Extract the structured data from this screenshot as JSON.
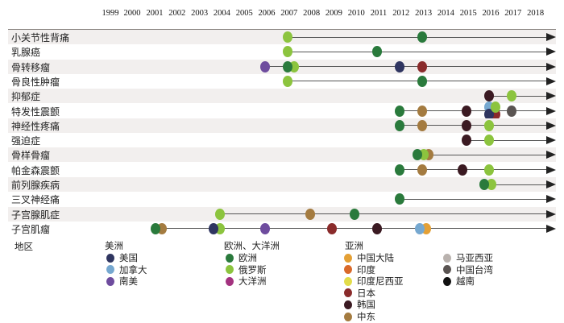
{
  "chart_data": {
    "type": "scatter",
    "title": "",
    "xlabel": "",
    "ylabel": "",
    "years": [
      "1999",
      "2000",
      "2001",
      "2002",
      "2003",
      "2004",
      "2005",
      "2006",
      "2007",
      "2008",
      "2009",
      "2010",
      "2011",
      "2012",
      "2013",
      "2014",
      "2015",
      "2016",
      "2017",
      "2018"
    ],
    "regions": {
      "usa": {
        "label": "美国",
        "color": "#2f3560"
      },
      "canada": {
        "label": "加拿大",
        "color": "#76a8d0"
      },
      "south_america": {
        "label": "南美",
        "color": "#6e4c9e"
      },
      "europe": {
        "label": "欧洲",
        "color": "#2a7a3c"
      },
      "russia": {
        "label": "俄罗斯",
        "color": "#8cc43e"
      },
      "oceania": {
        "label": "大洋洲",
        "color": "#a3327f"
      },
      "china_mainland": {
        "label": "中国大陆",
        "color": "#e4a035"
      },
      "india": {
        "label": "印度",
        "color": "#d9692a"
      },
      "indonesia": {
        "label": "印度尼西亚",
        "color": "#e2dc4a"
      },
      "japan": {
        "label": "日本",
        "color": "#8a2b2b"
      },
      "korea": {
        "label": "韩国",
        "color": "#3b1a22"
      },
      "middle_east": {
        "label": "中东",
        "color": "#a47b40"
      },
      "malaysia": {
        "label": "马亚西亚",
        "color": "#b9b2ae"
      },
      "taiwan": {
        "label": "中国台湾",
        "color": "#5a5452"
      },
      "vietnam": {
        "label": "越南",
        "color": "#111111"
      }
    },
    "rows": [
      {
        "label": "小关节性背痛",
        "points": [
          {
            "year": 2007,
            "region": "russia"
          },
          {
            "year": 2013,
            "region": "europe"
          }
        ]
      },
      {
        "label": "乳腺癌",
        "points": [
          {
            "year": 2007,
            "region": "russia"
          },
          {
            "year": 2011,
            "region": "europe"
          }
        ]
      },
      {
        "label": "骨转移瘤",
        "points": [
          {
            "year": 2006,
            "region": "south_america"
          },
          {
            "year": 2007.3,
            "region": "russia"
          },
          {
            "year": 2007,
            "region": "europe"
          },
          {
            "year": 2012,
            "region": "usa"
          },
          {
            "year": 2013,
            "region": "japan"
          }
        ]
      },
      {
        "label": "骨良性肿瘤",
        "points": [
          {
            "year": 2007,
            "region": "russia"
          },
          {
            "year": 2013,
            "region": "europe"
          }
        ]
      },
      {
        "label": "抑郁症",
        "points": [
          {
            "year": 2016,
            "region": "korea"
          },
          {
            "year": 2017,
            "region": "russia"
          }
        ]
      },
      {
        "label": "特发性震颤",
        "points": [
          {
            "year": 2012,
            "region": "europe"
          },
          {
            "year": 2013,
            "region": "middle_east"
          },
          {
            "year": 2015,
            "region": "korea"
          },
          {
            "year": 2016,
            "region": "canada",
            "pos": "top"
          },
          {
            "year": 2016.3,
            "region": "japan",
            "pos": "bottom"
          },
          {
            "year": 2016,
            "region": "usa",
            "pos": "bottom"
          },
          {
            "year": 2016.3,
            "region": "russia",
            "pos": "top"
          },
          {
            "year": 2017,
            "region": "taiwan"
          }
        ]
      },
      {
        "label": "神经性疼痛",
        "points": [
          {
            "year": 2012,
            "region": "europe"
          },
          {
            "year": 2013,
            "region": "middle_east"
          },
          {
            "year": 2015,
            "region": "korea"
          },
          {
            "year": 2016,
            "region": "russia"
          }
        ]
      },
      {
        "label": "强迫症",
        "points": [
          {
            "year": 2015,
            "region": "korea"
          },
          {
            "year": 2016,
            "region": "russia"
          }
        ]
      },
      {
        "label": "骨样骨瘤",
        "points": [
          {
            "year": 2013.3,
            "region": "middle_east"
          },
          {
            "year": 2013.1,
            "region": "russia"
          },
          {
            "year": 2012.8,
            "region": "europe"
          }
        ]
      },
      {
        "label": "帕金森震颤",
        "points": [
          {
            "year": 2012,
            "region": "europe"
          },
          {
            "year": 2013,
            "region": "middle_east"
          },
          {
            "year": 2014.8,
            "region": "korea"
          },
          {
            "year": 2016,
            "region": "russia"
          }
        ]
      },
      {
        "label": "前列腺疾病",
        "points": [
          {
            "year": 2016.1,
            "region": "russia"
          },
          {
            "year": 2015.8,
            "region": "europe"
          }
        ]
      },
      {
        "label": "三叉神经痛",
        "points": [
          {
            "year": 2012,
            "region": "europe"
          }
        ]
      },
      {
        "label": "子宫腺肌症",
        "points": [
          {
            "year": 2004,
            "region": "russia"
          },
          {
            "year": 2008,
            "region": "middle_east"
          },
          {
            "year": 2010,
            "region": "europe"
          }
        ]
      },
      {
        "label": "子宫肌瘤",
        "points": [
          {
            "year": 2001.4,
            "region": "middle_east"
          },
          {
            "year": 2001.1,
            "region": "europe"
          },
          {
            "year": 2004,
            "region": "russia"
          },
          {
            "year": 2003.7,
            "region": "usa"
          },
          {
            "year": 2006,
            "region": "south_america"
          },
          {
            "year": 2009,
            "region": "japan"
          },
          {
            "year": 2011,
            "region": "korea"
          },
          {
            "year": 2013.2,
            "region": "china_mainland"
          },
          {
            "year": 2012.9,
            "region": "canada"
          }
        ]
      }
    ],
    "legend": {
      "title": "地区",
      "groups": [
        {
          "label": "美洲",
          "items": [
            "usa",
            "canada",
            "south_america"
          ]
        },
        {
          "label": "欧洲、大洋洲",
          "items": [
            "europe",
            "russia",
            "oceania"
          ]
        },
        {
          "label": "亚洲",
          "items": [
            "china_mainland",
            "india",
            "indonesia",
            "japan",
            "korea",
            "middle_east"
          ]
        },
        {
          "label": "",
          "items": [
            "malaysia",
            "taiwan",
            "vietnam"
          ]
        }
      ]
    }
  }
}
